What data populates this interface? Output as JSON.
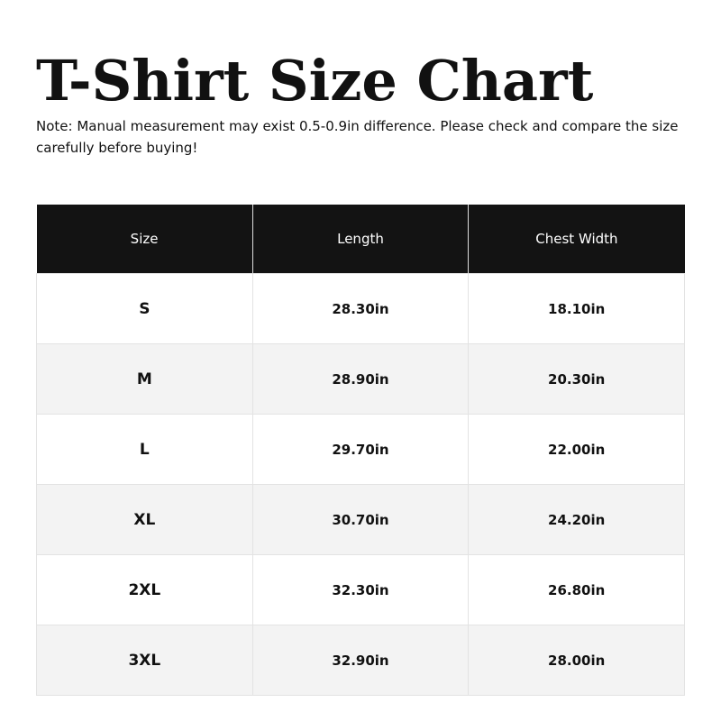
{
  "title": "T-Shirt Size Chart",
  "note": "Note: Manual measurement may exist 0.5-0.9in difference. Please check and compare the size carefully before buying!",
  "table": {
    "headers": [
      "Size",
      "Length",
      "Chest Width"
    ],
    "rows": [
      [
        "S",
        "28.30in",
        "18.10in"
      ],
      [
        "M",
        "28.90in",
        "20.30in"
      ],
      [
        "L",
        "29.70in",
        "22.00in"
      ],
      [
        "XL",
        "30.70in",
        "24.20in"
      ],
      [
        "2XL",
        "32.30in",
        "26.80in"
      ],
      [
        "3XL",
        "32.90in",
        "28.00in"
      ]
    ]
  }
}
